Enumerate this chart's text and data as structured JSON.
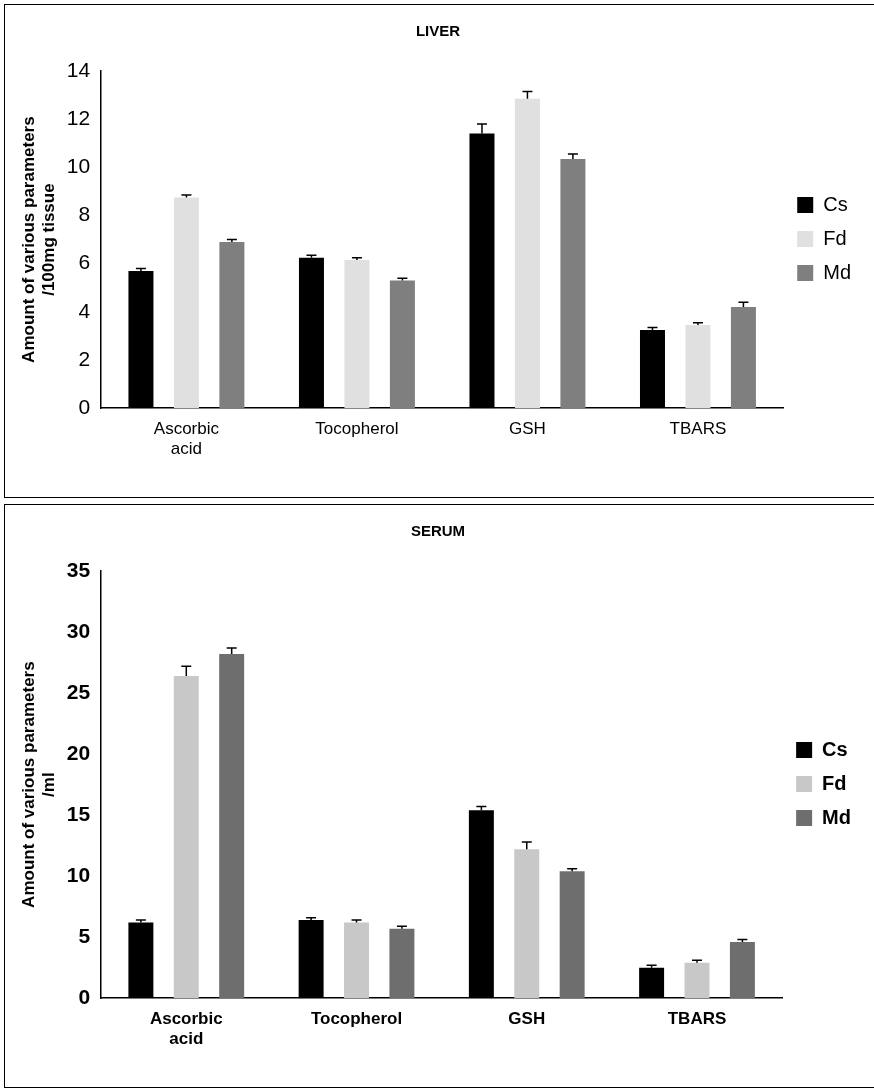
{
  "chart_data": [
    {
      "type": "bar",
      "title": "LIVER",
      "ylabel": "Amount of various parameters\n/100mg tissue",
      "categories": [
        "Ascorbic acid",
        "Tocopherol",
        "GSH",
        "TBARS"
      ],
      "series": [
        {
          "name": "Cs",
          "color": "#000000",
          "values": [
            5.7,
            6.25,
            11.4,
            3.25
          ],
          "errors": [
            0.1,
            0.1,
            0.4,
            0.1
          ]
        },
        {
          "name": "Fd",
          "color": "#e0e0e0",
          "values": [
            8.75,
            6.15,
            12.85,
            3.45
          ],
          "errors": [
            0.1,
            0.1,
            0.3,
            0.1
          ]
        },
        {
          "name": "Md",
          "color": "#7f7f7f",
          "values": [
            6.9,
            5.3,
            10.35,
            4.2
          ],
          "errors": [
            0.1,
            0.1,
            0.2,
            0.2
          ]
        }
      ],
      "ylim": [
        0,
        14
      ],
      "yticks": [
        0,
        2,
        4,
        6,
        8,
        10,
        12,
        14
      ],
      "grid": false,
      "legend": "right"
    },
    {
      "type": "bar",
      "title": "SERUM",
      "ylabel": "Amount of various parameters\n/ml",
      "categories": [
        "Ascorbic acid",
        "Tocopherol",
        "GSH",
        "TBARS"
      ],
      "series": [
        {
          "name": "Cs",
          "color": "#000000",
          "values": [
            6.2,
            6.4,
            15.4,
            2.5
          ],
          "errors": [
            0.2,
            0.2,
            0.3,
            0.2
          ]
        },
        {
          "name": "Fd",
          "color": "#c8c8c8",
          "values": [
            26.4,
            6.2,
            12.2,
            2.9
          ],
          "errors": [
            0.8,
            0.2,
            0.6,
            0.2
          ]
        },
        {
          "name": "Md",
          "color": "#6e6e6e",
          "values": [
            28.2,
            5.7,
            10.4,
            4.6
          ],
          "errors": [
            0.5,
            0.2,
            0.2,
            0.2
          ]
        }
      ],
      "ylim": [
        0,
        35
      ],
      "yticks": [
        0,
        5,
        10,
        15,
        20,
        25,
        30,
        35
      ],
      "grid": false,
      "legend": "right"
    }
  ]
}
